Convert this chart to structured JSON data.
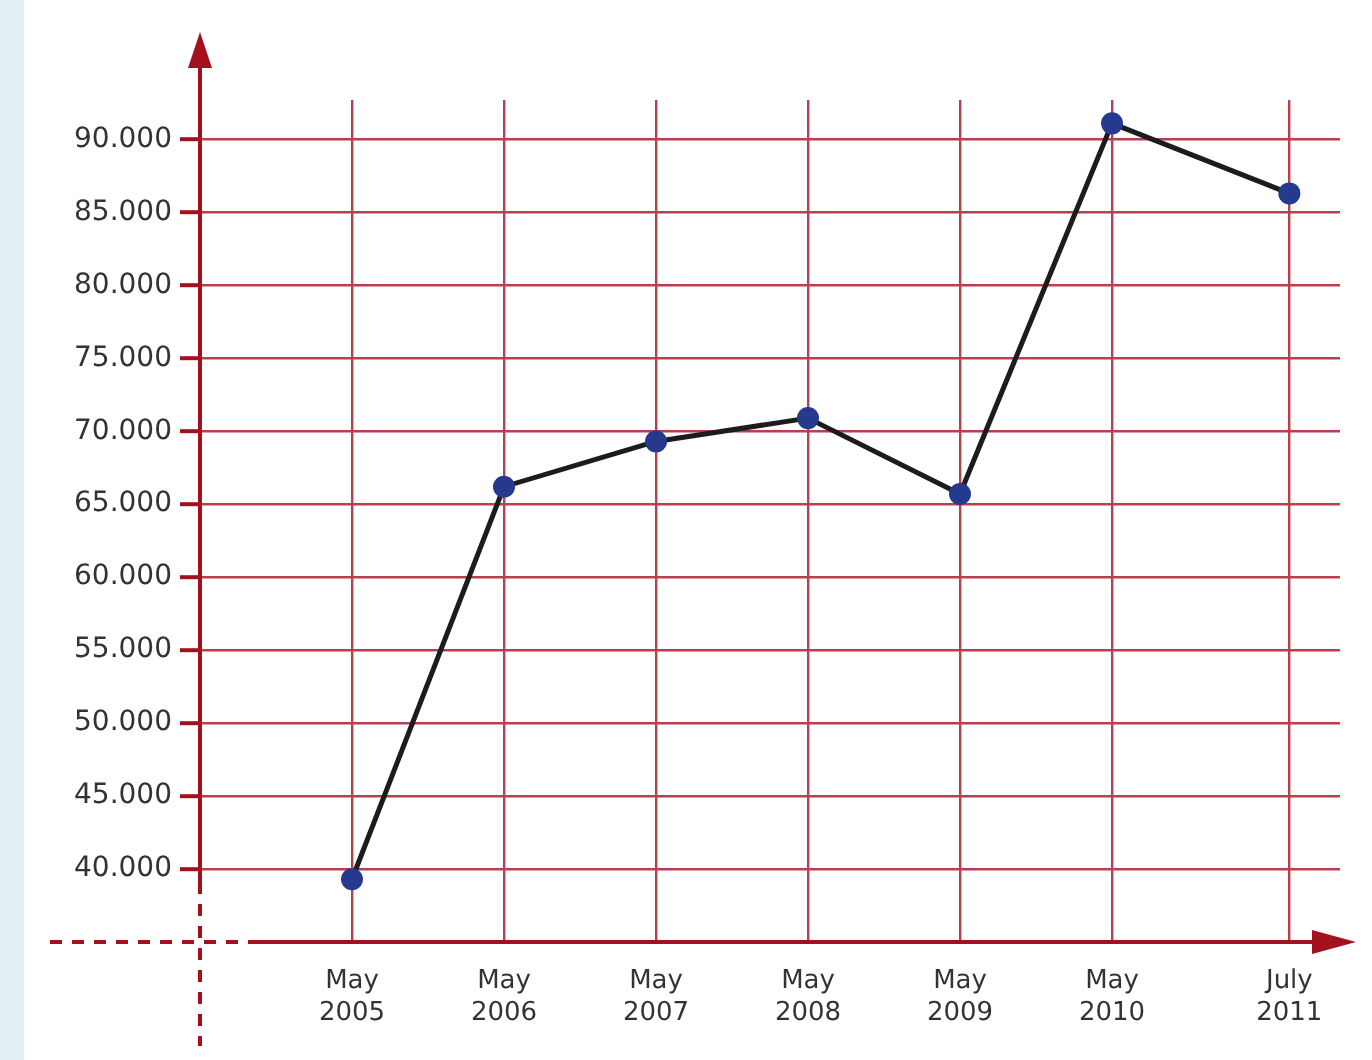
{
  "chart_data": {
    "type": "line",
    "x": [
      "2005-05",
      "2006-05",
      "2007-05",
      "2008-05",
      "2009-05",
      "2010-05",
      "2011-07"
    ],
    "series": [
      {
        "color": "#1c1c1c",
        "values": [
          39300,
          66200,
          69300,
          70900,
          65700,
          91100,
          86300
        ]
      }
    ],
    "xlim": [
      "2004-05",
      "2011-11"
    ],
    "xticks": [
      {
        "value": "2005-05",
        "label": "May\n2005"
      },
      {
        "value": "2006-05",
        "label": "May\n2006"
      },
      {
        "value": "2007-05",
        "label": "May\n2007"
      },
      {
        "value": "2008-05",
        "label": "May\n2008"
      },
      {
        "value": "2009-05",
        "label": "May\n2009"
      },
      {
        "value": "2010-05",
        "label": "May\n2010"
      },
      {
        "value": "2011-07",
        "label": "July\n2011"
      }
    ],
    "ylim": [
      35000,
      92700
    ],
    "yticks": [
      {
        "value": 40000,
        "label": "40.000"
      },
      {
        "value": 45000,
        "label": "45.000"
      },
      {
        "value": 50000,
        "label": "50.000"
      },
      {
        "value": 55000,
        "label": "55.000"
      },
      {
        "value": 60000,
        "label": "60.000"
      },
      {
        "value": 65000,
        "label": "65.000"
      },
      {
        "value": 70000,
        "label": "70.000"
      },
      {
        "value": 75000,
        "label": "75.000"
      },
      {
        "value": 80000,
        "label": "80.000"
      },
      {
        "value": 85000,
        "label": "85.000"
      },
      {
        "value": 90000,
        "label": "90.000"
      }
    ],
    "grid": true,
    "marker": "circle",
    "line_style": "solid"
  }
}
